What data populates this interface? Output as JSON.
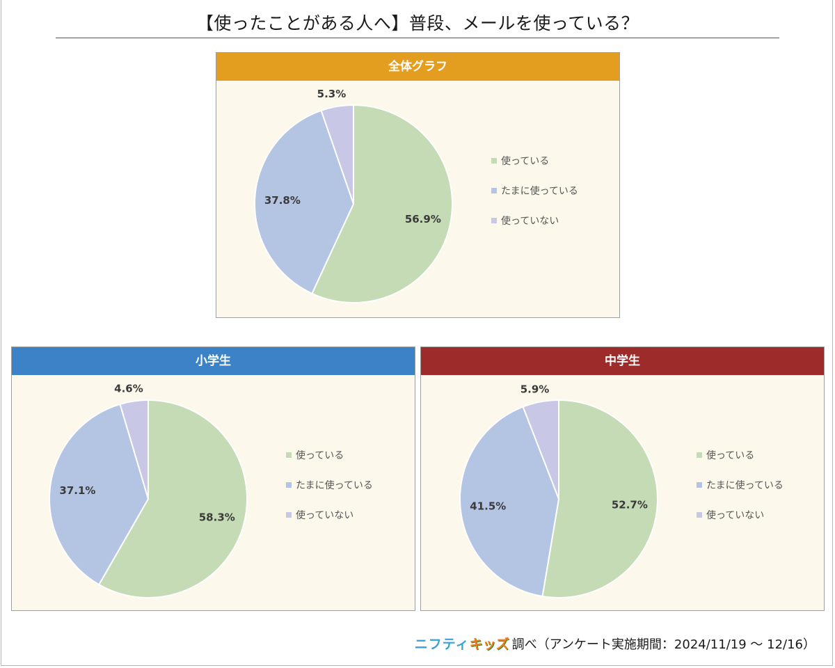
{
  "title": "【使ったことがある人へ】普段、メールを使っている？",
  "legend_labels": [
    "使っている",
    "たまに使っている",
    "使っていない"
  ],
  "colors": {
    "series": [
      "#c5dbb5",
      "#b4c4e3",
      "#c9c7e6"
    ],
    "overall_header": "#e39e1f",
    "elementary_header": "#3b82c6",
    "junior_header": "#9c2b2a",
    "panel_bg": "#fdf8ec"
  },
  "panels": {
    "overall": {
      "title": "全体グラフ"
    },
    "elementary": {
      "title": "小学生"
    },
    "junior": {
      "title": "中学生"
    }
  },
  "footer": {
    "brand_part1": "ニフティ",
    "brand_part2": "キッズ",
    "text": "調べ（アンケート実施期間：2024/11/19 ～ 12/16）"
  },
  "chart_data": [
    {
      "type": "pie",
      "title": "全体グラフ",
      "categories": [
        "使っている",
        "たまに使っている",
        "使っていない"
      ],
      "values": [
        56.9,
        37.8,
        5.3
      ],
      "labels": [
        "56.9%",
        "37.8%",
        "5.3%"
      ],
      "legend_position": "right"
    },
    {
      "type": "pie",
      "title": "小学生",
      "categories": [
        "使っている",
        "たまに使っている",
        "使っていない"
      ],
      "values": [
        58.3,
        37.1,
        4.6
      ],
      "labels": [
        "58.3%",
        "37.1%",
        "4.6%"
      ],
      "legend_position": "right"
    },
    {
      "type": "pie",
      "title": "中学生",
      "categories": [
        "使っている",
        "たまに使っている",
        "使っていない"
      ],
      "values": [
        52.7,
        41.5,
        5.9
      ],
      "labels": [
        "52.7%",
        "41.5%",
        "5.9%"
      ],
      "legend_position": "right"
    }
  ]
}
